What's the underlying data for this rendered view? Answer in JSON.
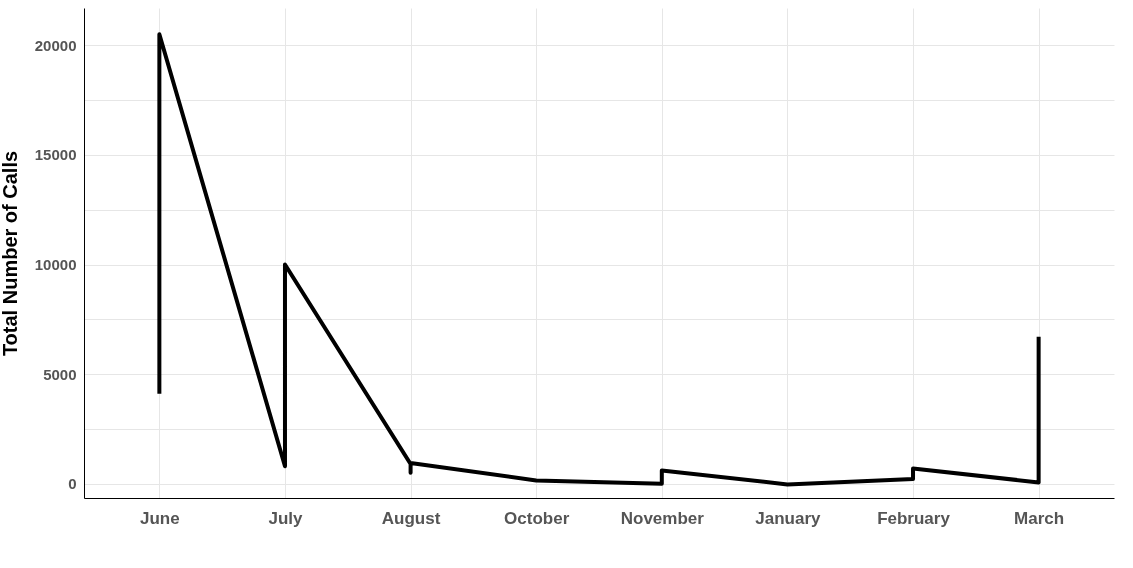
{
  "chart_data": {
    "type": "line",
    "ylabel": "Total Number of Calls",
    "categories": [
      "June",
      "July",
      "August",
      "October",
      "November",
      "January",
      "February",
      "March"
    ],
    "series": [
      {
        "color": "#000000",
        "x": [
          "June",
          "June",
          "July",
          "July",
          "August",
          "August",
          "August",
          "October",
          "November",
          "November",
          "January",
          "February",
          "February",
          "March",
          "March"
        ],
        "values": [
          4100,
          20500,
          800,
          10000,
          900,
          500,
          950,
          150,
          0,
          600,
          -30,
          220,
          700,
          60,
          6700
        ]
      }
    ],
    "ylim": [
      -650,
      21700
    ],
    "yticks": [
      0,
      {
        "value": 2500,
        "label": null
      },
      5000,
      {
        "value": 7500,
        "label": null
      },
      10000,
      {
        "value": 12500,
        "label": null
      },
      15000,
      {
        "value": 17500,
        "label": null
      },
      20000
    ],
    "grid": true,
    "marker": "none",
    "line_style": "solid"
  }
}
